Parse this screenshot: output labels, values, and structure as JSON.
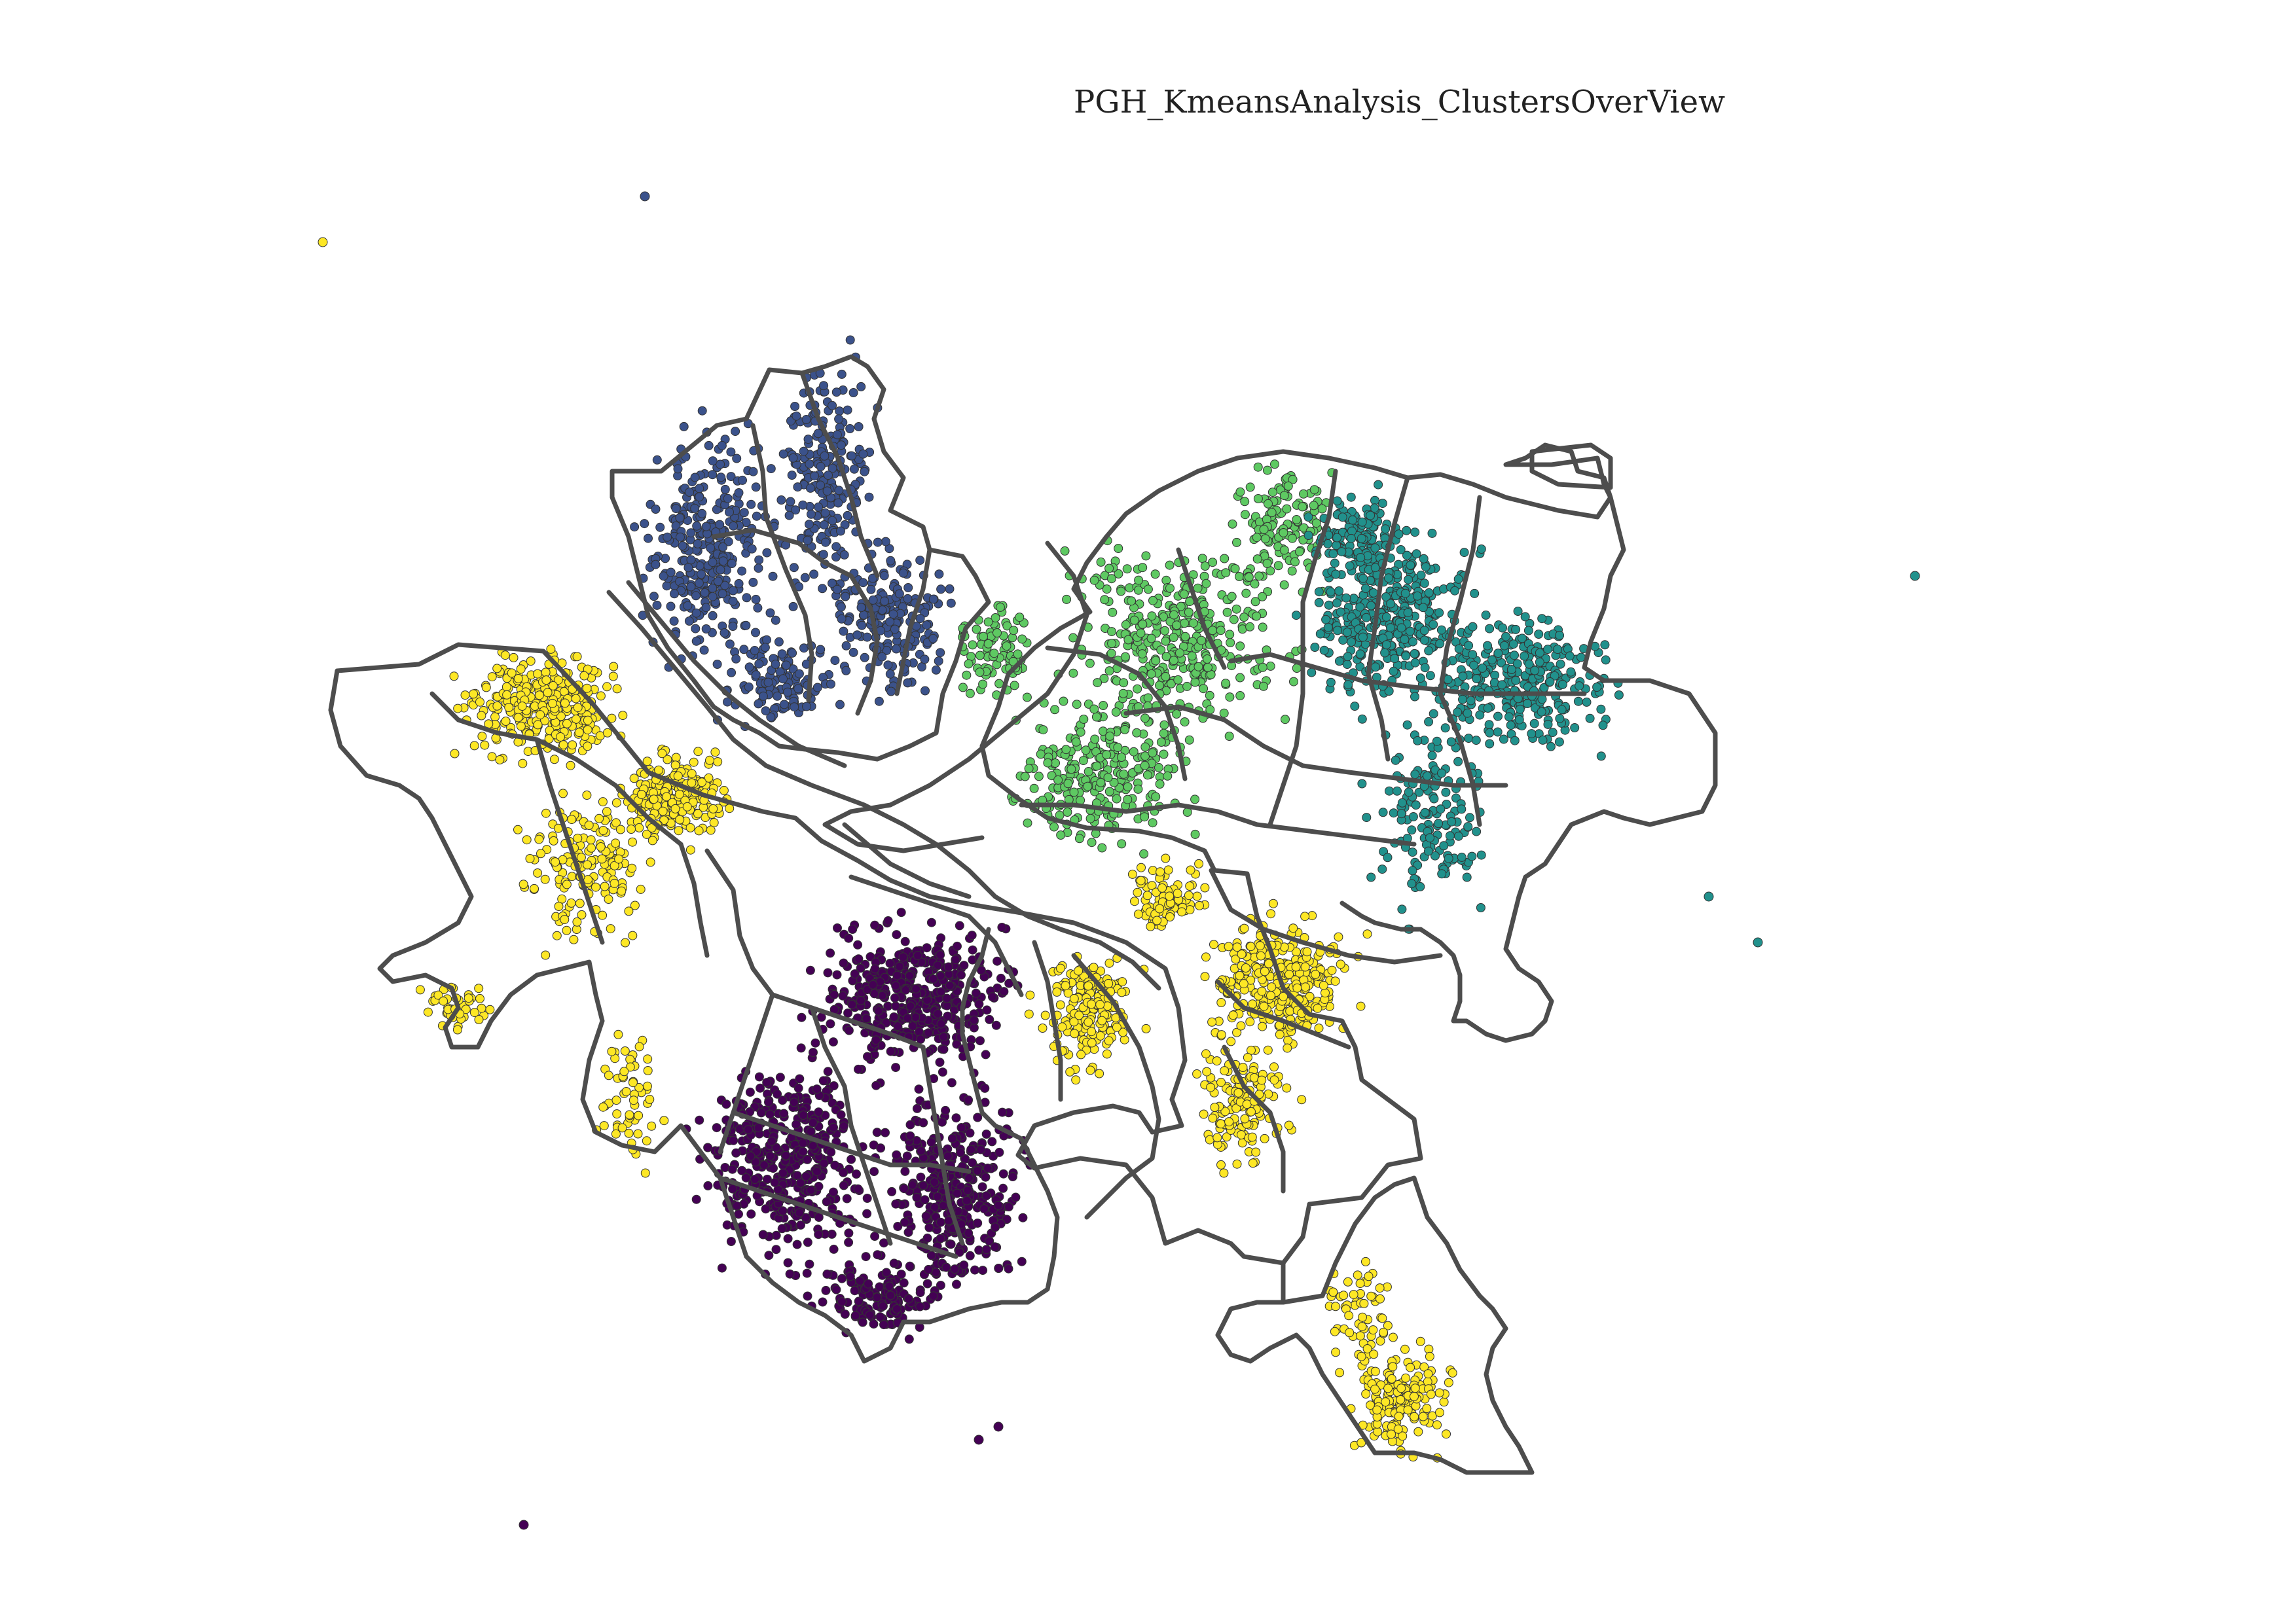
{
  "map": {
    "title": "PGH_KmeansAnalysis_ClustersOverView",
    "boundary_color": "#4d4d4d",
    "clusters": [
      {
        "id": 0,
        "color": "#440154",
        "area": "south"
      },
      {
        "id": 1,
        "color": "#3b528b",
        "area": "north"
      },
      {
        "id": 2,
        "color": "#21918c",
        "area": "east"
      },
      {
        "id": 3,
        "color": "#5ec962",
        "area": "central"
      },
      {
        "id": 4,
        "color": "#fde725",
        "area": "west, southeast and outer edges"
      }
    ]
  }
}
